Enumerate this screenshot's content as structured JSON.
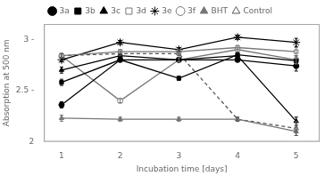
{
  "chart_data": {
    "type": "line",
    "x": [
      1,
      2,
      3,
      4,
      5
    ],
    "xlabel": "Incubation time [days]",
    "ylabel": "Absorption at 500 nm",
    "xlim": [
      0.7,
      5.4
    ],
    "xticks": [
      1,
      2,
      3,
      4,
      5
    ],
    "ylim": [
      2.0,
      3.15
    ],
    "yticks": [
      2,
      {
        "value": 2.5,
        "label": "2.5 -"
      },
      {
        "value": 3,
        "label": "3 -"
      }
    ],
    "grid": false,
    "legend": "top",
    "series": [
      {
        "name": "3a",
        "color": "#000000",
        "marker": "circle",
        "line_style": "solid",
        "values": [
          2.36,
          2.8,
          2.8,
          2.8,
          2.74
        ],
        "errors": [
          0.03,
          0.02,
          0.02,
          0.02,
          0.05
        ]
      },
      {
        "name": "3b",
        "color": "#000000",
        "marker": "square",
        "line_style": "solid",
        "values": [
          2.58,
          2.8,
          2.62,
          2.85,
          2.79
        ],
        "errors": [
          0.03,
          0.02,
          0.02,
          0.02,
          0.05
        ]
      },
      {
        "name": "3c",
        "color": "#000000",
        "marker": "triangle",
        "line_style": "solid",
        "values": [
          2.7,
          2.84,
          2.8,
          2.84,
          2.2
        ],
        "errors": [
          0.03,
          0.02,
          0.02,
          0.02,
          0.04
        ]
      },
      {
        "name": "3d",
        "color": "#777777",
        "marker": "open_square",
        "line_style": "solid",
        "values": [
          2.84,
          2.88,
          2.88,
          2.92,
          2.88
        ],
        "errors": [
          0.02,
          0.02,
          0.02,
          0.02,
          0.04
        ]
      },
      {
        "name": "3e",
        "color": "#000000",
        "marker": "star",
        "line_style": "solid",
        "values": [
          2.8,
          2.97,
          2.9,
          3.02,
          2.97
        ],
        "errors": [
          0.02,
          0.02,
          0.02,
          0.02,
          0.04
        ]
      },
      {
        "name": "3f",
        "color": "#777777",
        "marker": "open_circle",
        "line_style": "solid",
        "values": [
          2.84,
          2.4,
          2.8,
          2.9,
          2.8
        ],
        "errors": [
          0.02,
          0.02,
          0.02,
          0.02,
          0.04
        ]
      },
      {
        "name": "BHT",
        "color": "#777777",
        "marker": "triangle",
        "line_style": "solid",
        "values": [
          2.23,
          2.22,
          2.22,
          2.22,
          2.1
        ],
        "errors": [
          0.03,
          0.02,
          0.02,
          0.02,
          0.04
        ]
      },
      {
        "name": "Control",
        "color": "#555555",
        "marker": "open_triangle",
        "line_style": "dashed",
        "values": [
          2.84,
          2.86,
          2.86,
          2.22,
          2.13
        ],
        "errors": [
          0.02,
          0.02,
          0.02,
          0.02,
          0.07
        ]
      }
    ]
  }
}
